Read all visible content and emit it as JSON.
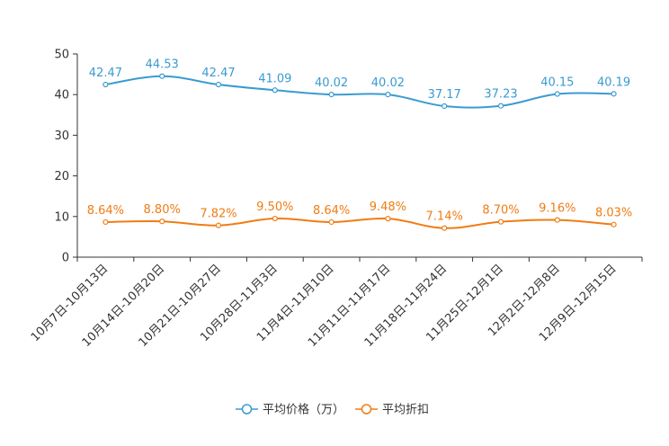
{
  "chart_data": {
    "type": "line",
    "categories": [
      "10月7日-10月13日",
      "10月14日-10月20日",
      "10月21日-10月27日",
      "10月28日-11月3日",
      "11月4日-11月10日",
      "11月11日-11月17日",
      "11月18日-11月24日",
      "11月25日-12月1日",
      "12月2日-12月8日",
      "12月9日-12月15日"
    ],
    "ylim": [
      0,
      50
    ],
    "yticks": [
      0,
      10,
      20,
      30,
      40,
      50
    ],
    "series": [
      {
        "name": "平均价格（万）",
        "color": "#3a9bd1",
        "values": [
          42.47,
          44.53,
          42.47,
          41.09,
          40.02,
          40.02,
          37.17,
          37.23,
          40.15,
          40.19
        ],
        "labels": [
          "42.47",
          "44.53",
          "42.47",
          "41.09",
          "40.02",
          "40.02",
          "37.17",
          "37.23",
          "40.15",
          "40.19"
        ]
      },
      {
        "name": "平均折扣",
        "color": "#f07c14",
        "values": [
          8.64,
          8.8,
          7.82,
          9.5,
          8.64,
          9.48,
          7.14,
          8.7,
          9.16,
          8.03
        ],
        "labels": [
          "8.64%",
          "8.80%",
          "7.82%",
          "9.50%",
          "8.64%",
          "9.48%",
          "7.14%",
          "8.70%",
          "9.16%",
          "8.03%"
        ]
      }
    ],
    "legend_position": "bottom-center"
  }
}
